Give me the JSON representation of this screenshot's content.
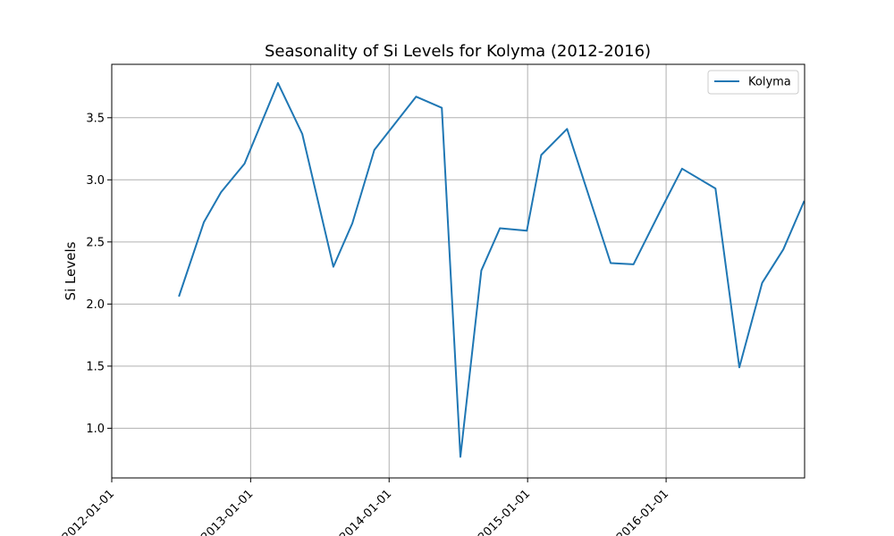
{
  "chart_data": {
    "type": "line",
    "title": "Seasonality of Si Levels for Kolyma (2012-2016)",
    "xlabel": "",
    "ylabel": "Si Levels",
    "xlim": [
      "2012-01-01",
      "2016-12-31"
    ],
    "ylim": [
      0.6,
      3.93
    ],
    "x_ticks": [
      "2012-01-01",
      "2013-01-01",
      "2014-01-01",
      "2015-01-01",
      "2016-01-01"
    ],
    "y_ticks": [
      "1.0",
      "1.5",
      "2.0",
      "2.5",
      "3.0",
      "3.5"
    ],
    "grid": true,
    "legend_position": "top-right",
    "series": [
      {
        "name": "Kolyma",
        "color": "#1f77b4",
        "points": [
          {
            "x": "2012-06-26",
            "y": 2.06
          },
          {
            "x": "2012-08-31",
            "y": 2.66
          },
          {
            "x": "2012-10-15",
            "y": 2.9
          },
          {
            "x": "2012-12-16",
            "y": 3.13
          },
          {
            "x": "2013-03-14",
            "y": 3.78
          },
          {
            "x": "2013-05-17",
            "y": 3.37
          },
          {
            "x": "2013-08-07",
            "y": 2.3
          },
          {
            "x": "2013-09-26",
            "y": 2.65
          },
          {
            "x": "2013-11-23",
            "y": 3.24
          },
          {
            "x": "2014-03-13",
            "y": 3.67
          },
          {
            "x": "2014-05-20",
            "y": 3.58
          },
          {
            "x": "2014-07-08",
            "y": 0.77
          },
          {
            "x": "2014-09-01",
            "y": 2.27
          },
          {
            "x": "2014-10-20",
            "y": 2.61
          },
          {
            "x": "2014-12-30",
            "y": 2.59
          },
          {
            "x": "2015-02-06",
            "y": 3.2
          },
          {
            "x": "2015-04-15",
            "y": 3.41
          },
          {
            "x": "2015-08-08",
            "y": 2.33
          },
          {
            "x": "2015-10-07",
            "y": 2.32
          },
          {
            "x": "2015-12-15",
            "y": 2.74
          },
          {
            "x": "2016-02-12",
            "y": 3.09
          },
          {
            "x": "2016-05-10",
            "y": 2.93
          },
          {
            "x": "2016-07-12",
            "y": 1.49
          },
          {
            "x": "2016-09-10",
            "y": 2.17
          },
          {
            "x": "2016-11-05",
            "y": 2.44
          },
          {
            "x": "2016-12-30",
            "y": 2.83
          }
        ]
      }
    ]
  }
}
